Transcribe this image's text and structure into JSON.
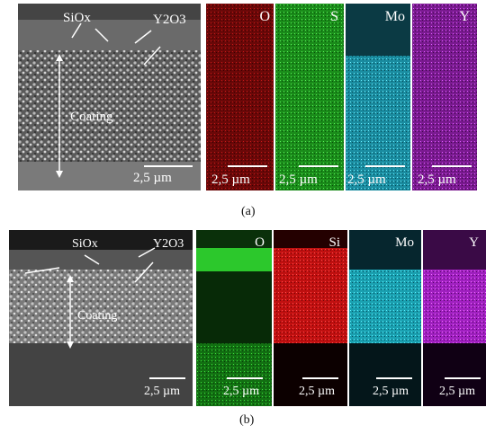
{
  "figure_a": {
    "caption": "(a)",
    "sem": {
      "labels": {
        "siox": "SiOx",
        "y2o3": "Y2O3",
        "coating": "Coating"
      },
      "scale": "2,5 µm"
    },
    "maps": [
      {
        "element": "O",
        "color": "#ff3030",
        "scale": "2,5 µm"
      },
      {
        "element": "S",
        "color": "#30ff30",
        "scale": "2,5 µm"
      },
      {
        "element": "Mo",
        "color": "#30e0ff",
        "scale": "2,5 µm"
      },
      {
        "element": "Y",
        "color": "#e030ff",
        "scale": "2,5 µm"
      }
    ]
  },
  "figure_b": {
    "caption": "(b)",
    "sem": {
      "labels": {
        "siox": "SiOx",
        "y2o3": "Y2O3",
        "coating": "Coating"
      },
      "scale": "2,5 µm"
    },
    "maps": [
      {
        "element": "O",
        "color": "#2ee62e",
        "scale": "2,5 µm"
      },
      {
        "element": "Si",
        "color": "#ff2020",
        "scale": "2,5 µm"
      },
      {
        "element": "Mo",
        "color": "#20e6f0",
        "scale": "2,5 µm"
      },
      {
        "element": "Y",
        "color": "#e020ff",
        "scale": "2,5 µm"
      }
    ]
  }
}
